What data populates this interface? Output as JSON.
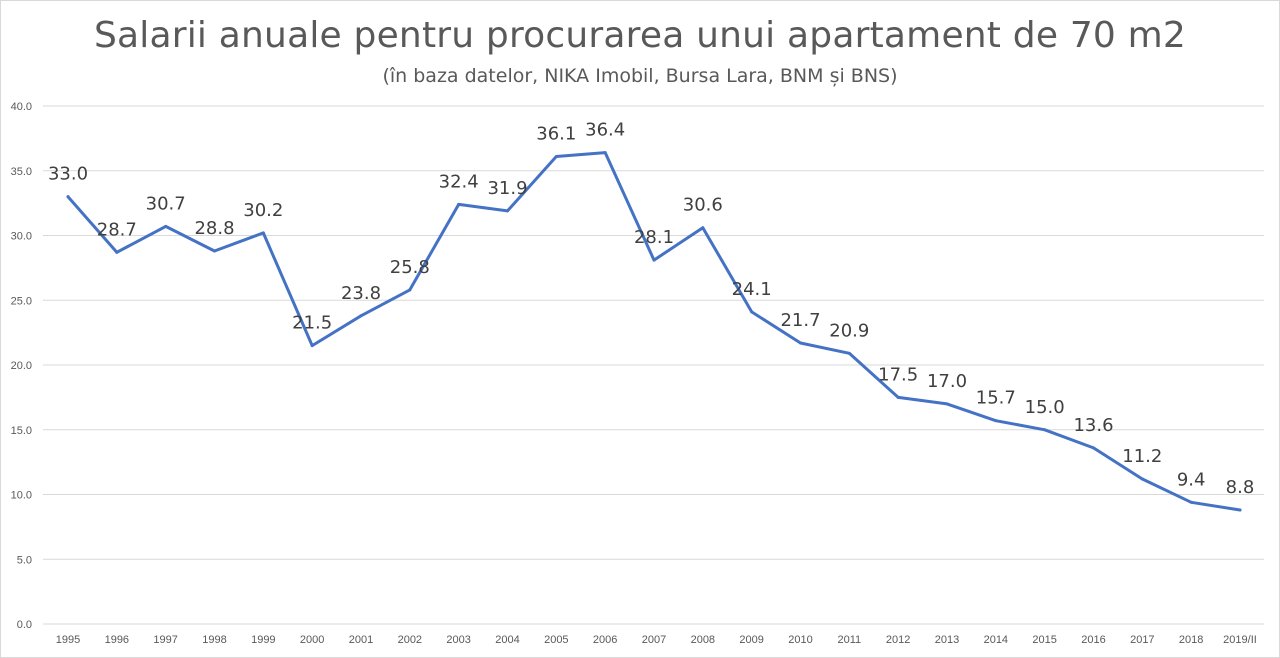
{
  "chart_data": {
    "type": "line",
    "title": "Salarii anuale pentru procurarea unui apartament de 70 m2",
    "subtitle": "(în baza datelor, NIKA Imobil, Bursa Lara, BNM și BNS)",
    "xlabel": "",
    "ylabel": "",
    "categories": [
      "1995",
      "1996",
      "1997",
      "1998",
      "1999",
      "2000",
      "2001",
      "2002",
      "2003",
      "2004",
      "2005",
      "2006",
      "2007",
      "2008",
      "2009",
      "2010",
      "2011",
      "2012",
      "2013",
      "2014",
      "2015",
      "2016",
      "2017",
      "2018",
      "2019/II"
    ],
    "series": [
      {
        "values": [
          33.0,
          28.7,
          30.7,
          28.8,
          30.2,
          21.5,
          23.8,
          25.8,
          32.4,
          31.9,
          36.1,
          36.4,
          28.1,
          30.6,
          24.1,
          21.7,
          20.9,
          17.5,
          17.0,
          15.7,
          15.0,
          13.6,
          11.2,
          9.4,
          8.8
        ],
        "color": "#4472c4"
      }
    ],
    "data_labels": [
      "33.0",
      "28.7",
      "30.7",
      "28.8",
      "30.2",
      "21.5",
      "23.8",
      "25.8",
      "32.4",
      "31.9",
      "36.1",
      "36.4",
      "28.1",
      "30.6",
      "24.1",
      "21.7",
      "20.9",
      "17.5",
      "17.0",
      "15.7",
      "15.0",
      "13.6",
      "11.2",
      "9.4",
      "8.8"
    ],
    "ylim": [
      0,
      40
    ],
    "yticks": [
      "0.0",
      "5.0",
      "10.0",
      "15.0",
      "20.0",
      "25.0",
      "30.0",
      "35.0",
      "40.0"
    ],
    "grid": true,
    "legend": "none"
  }
}
